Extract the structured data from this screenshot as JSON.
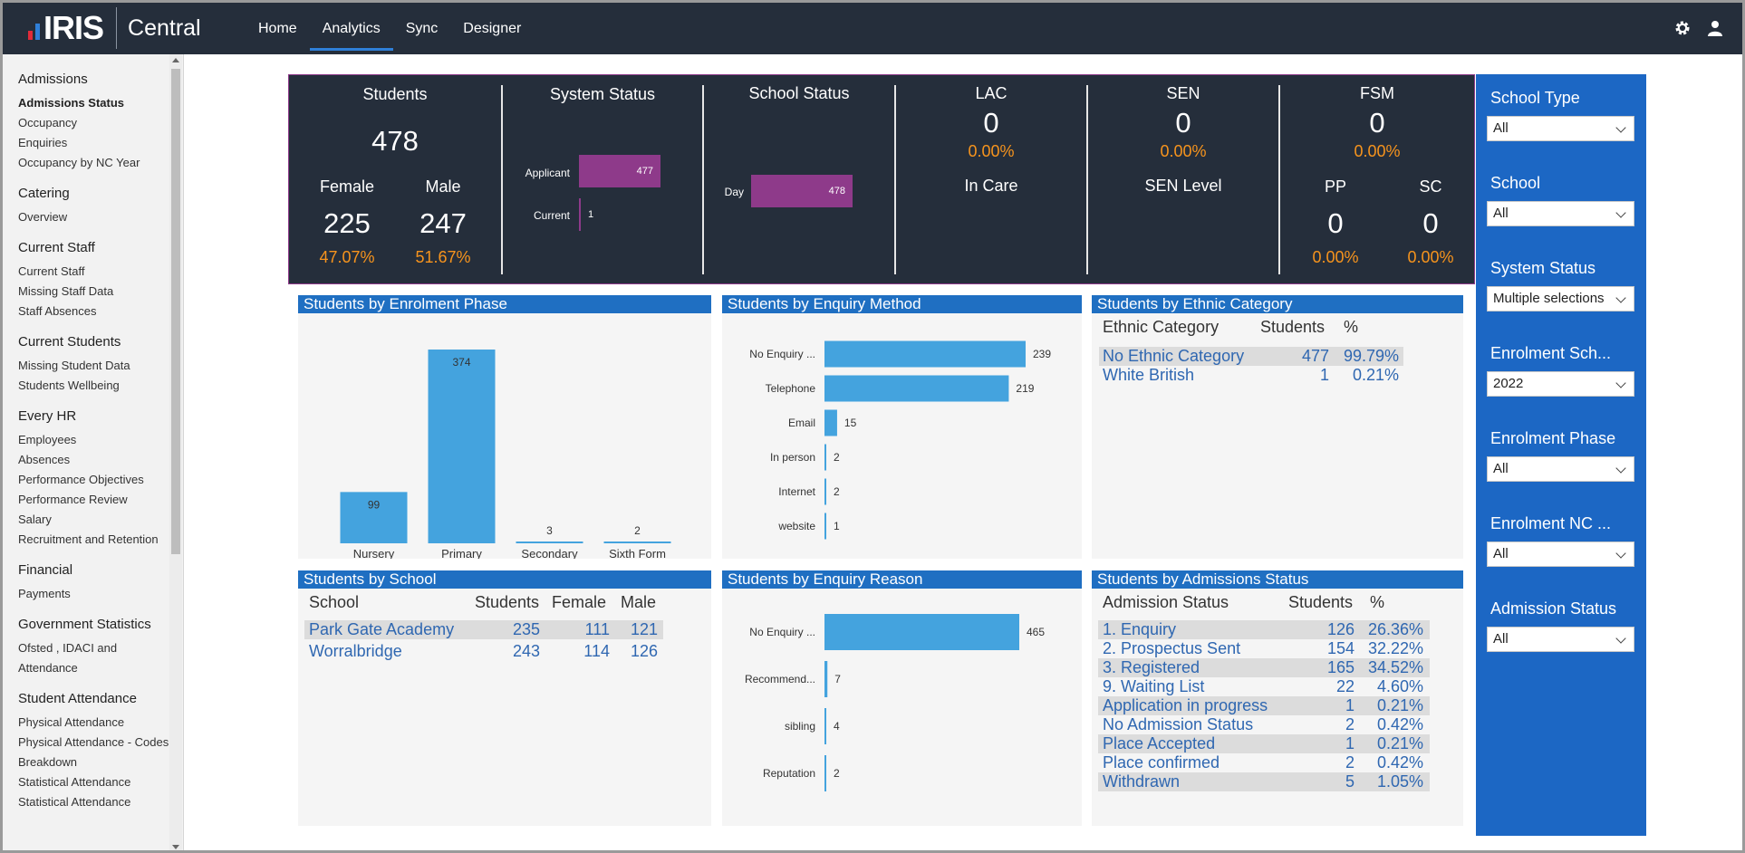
{
  "app": {
    "brand": "IRIS",
    "product": "Central"
  },
  "colors": {
    "topbar": "#252e3b",
    "accent_bar": "#1f6fc2",
    "bar_fill": "#44a3de",
    "kpi_bar": "#8e3a8a",
    "pct": "#f7941d",
    "slicer_bg": "#1c67c4"
  },
  "nav": {
    "items": [
      "Home",
      "Analytics",
      "Sync",
      "Designer"
    ],
    "active": "Analytics"
  },
  "top_icons": [
    "gear-icon",
    "user-icon"
  ],
  "sidebar": {
    "groups": [
      {
        "heading": "Admissions",
        "items": [
          "Admissions Status",
          "Occupancy",
          "Enquiries",
          "Occupancy by NC Year"
        ],
        "active": "Admissions Status"
      },
      {
        "heading": "Catering",
        "items": [
          "Overview"
        ]
      },
      {
        "heading": "Current Staff",
        "items": [
          "Current Staff",
          "Missing Staff Data",
          "Staff Absences"
        ]
      },
      {
        "heading": "Current Students",
        "items": [
          "Missing Student Data",
          "Students Wellbeing"
        ]
      },
      {
        "heading": "Every HR",
        "items": [
          "Employees",
          "Absences",
          "Performance Objectives",
          "Performance Review",
          "Salary",
          "Recruitment and Retention"
        ]
      },
      {
        "heading": "Financial",
        "items": [
          "Payments"
        ]
      },
      {
        "heading": "Government Statistics",
        "items": [
          "Ofsted , IDACI and Attendance"
        ]
      },
      {
        "heading": "Student Attendance",
        "items": [
          "Physical Attendance",
          "Physical Attendance - Codes Breakdown",
          "Statistical Attendance",
          "Statistical Attendance"
        ]
      }
    ]
  },
  "kpi": {
    "students": {
      "title": "Students",
      "value": "478",
      "female_label": "Female",
      "male_label": "Male",
      "female": "225",
      "male": "247",
      "female_pct": "47.07%",
      "male_pct": "51.67%"
    },
    "system_status": {
      "title": "System Status",
      "rows": [
        {
          "label": "Applicant",
          "value": 477
        },
        {
          "label": "Current",
          "value": 1
        }
      ]
    },
    "school_status": {
      "title": "School Status",
      "rows": [
        {
          "label": "Day",
          "value": 478
        }
      ]
    },
    "lac": {
      "title": "LAC",
      "value": "0",
      "pct": "0.00%",
      "sub": "In Care"
    },
    "sen": {
      "title": "SEN",
      "value": "0",
      "pct": "0.00%",
      "sub": "SEN Level"
    },
    "fsm": {
      "title": "FSM",
      "value": "0",
      "pct": "0.00%",
      "pp_label": "PP",
      "pp": "0",
      "pp_pct": "0.00%",
      "sc_label": "SC",
      "sc": "0",
      "sc_pct": "0.00%"
    }
  },
  "chart_data": [
    {
      "type": "bar",
      "title": "Students by Enrolment Phase",
      "categories": [
        "Nursery",
        "Primary",
        "Secondary",
        "Sixth Form"
      ],
      "values": [
        99,
        374,
        3,
        2
      ]
    },
    {
      "type": "bar",
      "orientation": "horizontal",
      "title": "Students by Enquiry Method",
      "categories": [
        "No Enquiry ...",
        "Telephone",
        "Email",
        "In person",
        "Internet",
        "website"
      ],
      "values": [
        239,
        219,
        15,
        2,
        2,
        1
      ]
    },
    {
      "type": "bar",
      "orientation": "horizontal",
      "title": "Students by Enquiry Reason",
      "categories": [
        "No Enquiry ...",
        "Recommend...",
        "sibling",
        "Reputation"
      ],
      "values": [
        465,
        7,
        4,
        2
      ]
    }
  ],
  "ethnic_table": {
    "title": "Students by Ethnic Category",
    "headers": [
      "Ethnic Category",
      "Students",
      "%"
    ],
    "rows": [
      [
        "No Ethnic Category",
        "477",
        "99.79%"
      ],
      [
        "White British",
        "1",
        "0.21%"
      ]
    ]
  },
  "school_table": {
    "title": "Students by School",
    "headers": [
      "School",
      "Students",
      "Female",
      "Male"
    ],
    "rows": [
      [
        "Park Gate Academy",
        "235",
        "111",
        "121"
      ],
      [
        "Worralbridge",
        "243",
        "114",
        "126"
      ]
    ]
  },
  "admissions_table": {
    "title": "Students by Admissions Status",
    "headers": [
      "Admission Status",
      "Students",
      "%"
    ],
    "rows": [
      [
        "1. Enquiry",
        "126",
        "26.36%"
      ],
      [
        "2. Prospectus Sent",
        "154",
        "32.22%"
      ],
      [
        "3. Registered",
        "165",
        "34.52%"
      ],
      [
        "9. Waiting List",
        "22",
        "4.60%"
      ],
      [
        "Application in progress",
        "1",
        "0.21%"
      ],
      [
        "No Admission Status",
        "2",
        "0.42%"
      ],
      [
        "Place Accepted",
        "1",
        "0.21%"
      ],
      [
        "Place confirmed",
        "2",
        "0.42%"
      ],
      [
        "Withdrawn",
        "5",
        "1.05%"
      ]
    ]
  },
  "slicers": [
    {
      "label": "School Type",
      "value": "All"
    },
    {
      "label": "School",
      "value": "All"
    },
    {
      "label": "System Status",
      "value": "Multiple selections"
    },
    {
      "label": "Enrolment Sch...",
      "value": "2022"
    },
    {
      "label": "Enrolment Phase",
      "value": "All"
    },
    {
      "label": "Enrolment NC ...",
      "value": "All"
    },
    {
      "label": "Admission Status",
      "value": "All"
    }
  ]
}
